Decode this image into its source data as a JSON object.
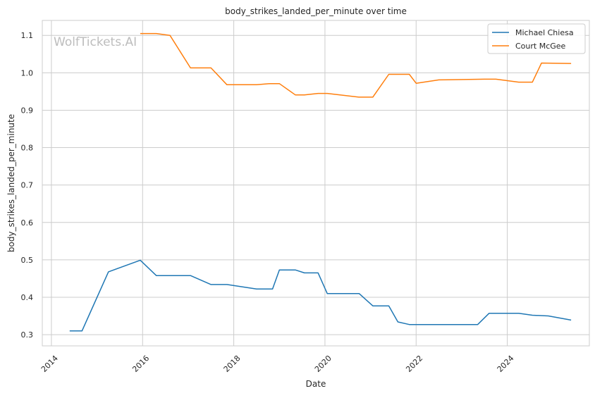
{
  "chart_data": {
    "type": "line",
    "title": "body_strikes_landed_per_minute over time",
    "xlabel": "Date",
    "ylabel": "body_strikes_landed_per_minute",
    "xlim": [
      2013.8,
      2025.8
    ],
    "ylim": [
      0.27,
      1.14
    ],
    "x_ticks": [
      2014,
      2016,
      2018,
      2020,
      2022,
      2024
    ],
    "y_ticks": [
      0.3,
      0.4,
      0.5,
      0.6,
      0.7,
      0.8,
      0.9,
      1.0,
      1.1
    ],
    "y_tick_labels": [
      "0.3",
      "0.4",
      "0.5",
      "0.6",
      "0.7",
      "0.8",
      "0.9",
      "1.0",
      "1.1"
    ],
    "grid": true,
    "legend_position": "top-right",
    "watermark": "WolfTickets.AI",
    "series": [
      {
        "name": "Michael Chiesa",
        "color": "#1f77b4",
        "x": [
          2014.4,
          2014.67,
          2015.25,
          2015.95,
          2016.3,
          2017.05,
          2017.5,
          2017.85,
          2018.5,
          2018.85,
          2019.0,
          2019.35,
          2019.55,
          2019.85,
          2020.05,
          2020.75,
          2021.05,
          2021.4,
          2021.6,
          2021.85,
          2022.5,
          2023.35,
          2023.6,
          2024.25,
          2024.55,
          2024.9,
          2025.4
        ],
        "y": [
          0.31,
          0.31,
          0.468,
          0.499,
          0.458,
          0.458,
          0.434,
          0.434,
          0.422,
          0.422,
          0.473,
          0.473,
          0.465,
          0.465,
          0.41,
          0.41,
          0.377,
          0.377,
          0.334,
          0.327,
          0.327,
          0.327,
          0.357,
          0.357,
          0.352,
          0.35,
          0.339
        ]
      },
      {
        "name": "Court McGee",
        "color": "#ff7f0e",
        "x": [
          2015.95,
          2016.3,
          2016.6,
          2017.05,
          2017.5,
          2017.85,
          2018.5,
          2018.8,
          2019.0,
          2019.35,
          2019.55,
          2019.85,
          2020.05,
          2020.75,
          2021.05,
          2021.4,
          2021.85,
          2022.0,
          2022.5,
          2023.5,
          2023.75,
          2024.25,
          2024.55,
          2024.75,
          2025.4
        ],
        "y": [
          1.105,
          1.105,
          1.1,
          1.013,
          1.013,
          0.968,
          0.968,
          0.971,
          0.971,
          0.941,
          0.941,
          0.945,
          0.945,
          0.935,
          0.935,
          0.996,
          0.996,
          0.972,
          0.981,
          0.983,
          0.983,
          0.975,
          0.975,
          1.026,
          1.025
        ]
      }
    ]
  }
}
